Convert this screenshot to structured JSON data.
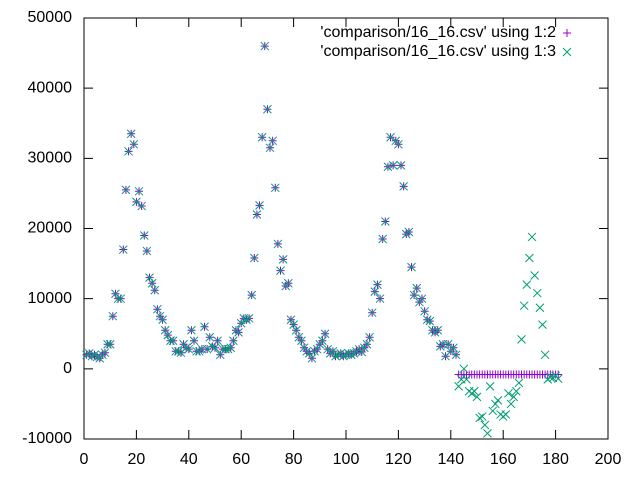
{
  "chart_data": {
    "type": "scatter",
    "x": [
      1,
      2,
      3,
      4,
      5,
      6,
      7,
      8,
      9,
      10,
      11,
      12,
      13,
      14,
      15,
      16,
      17,
      18,
      19,
      20,
      21,
      22,
      23,
      24,
      25,
      26,
      27,
      28,
      29,
      30,
      31,
      32,
      33,
      34,
      35,
      36,
      37,
      38,
      39,
      40,
      41,
      42,
      43,
      44,
      45,
      46,
      47,
      48,
      49,
      50,
      51,
      52,
      53,
      54,
      55,
      56,
      57,
      58,
      59,
      60,
      61,
      62,
      63,
      64,
      65,
      66,
      67,
      68,
      69,
      70,
      71,
      72,
      73,
      74,
      75,
      76,
      77,
      78,
      79,
      80,
      81,
      82,
      83,
      84,
      85,
      86,
      87,
      88,
      89,
      90,
      91,
      92,
      93,
      94,
      95,
      96,
      97,
      98,
      99,
      100,
      101,
      102,
      103,
      104,
      105,
      106,
      107,
      108,
      109,
      110,
      111,
      112,
      113,
      114,
      115,
      116,
      117,
      118,
      119,
      120,
      121,
      122,
      123,
      124,
      125,
      126,
      127,
      128,
      129,
      130,
      131,
      132,
      133,
      134,
      135,
      136,
      137,
      138,
      139,
      140,
      141,
      142,
      143,
      144,
      145,
      146,
      147,
      148,
      149,
      150,
      151,
      152,
      153,
      154,
      155,
      156,
      157,
      158,
      159,
      160,
      161,
      162,
      163,
      164,
      165,
      166,
      167,
      168,
      169,
      170,
      171,
      172,
      173,
      174,
      175,
      176,
      177,
      178,
      179,
      180,
      181
    ],
    "series": [
      {
        "name": "'comparison/16_16.csv' using 1:2",
        "color": "#9400d3",
        "marker": "plus",
        "values": [
          2000,
          2200,
          1800,
          2000,
          1700,
          1500,
          2000,
          2300,
          3500,
          3500,
          7500,
          10700,
          10000,
          10000,
          17000,
          25500,
          31000,
          33500,
          32000,
          23800,
          25300,
          23200,
          19000,
          16800,
          13000,
          12200,
          11200,
          8500,
          7500,
          7000,
          5500,
          4800,
          4000,
          4000,
          2500,
          2500,
          2300,
          3500,
          3000,
          2800,
          5500,
          4000,
          2500,
          2500,
          2800,
          6000,
          2800,
          4500,
          3200,
          3000,
          4000,
          2000,
          2800,
          2800,
          2800,
          3000,
          4000,
          5500,
          5200,
          6500,
          7200,
          7000,
          7200,
          10500,
          15800,
          22000,
          23300,
          33000,
          46000,
          37000,
          31500,
          32500,
          25800,
          17800,
          14000,
          15600,
          11800,
          12200,
          7000,
          6300,
          5500,
          4500,
          4000,
          3000,
          2500,
          2200,
          1500,
          2500,
          2800,
          3500,
          4000,
          5000,
          2800,
          2200,
          2500,
          1800,
          2000,
          2200,
          1800,
          2000,
          2200,
          2000,
          2200,
          2500,
          2800,
          2400,
          3000,
          3500,
          4500,
          8000,
          11000,
          12000,
          10000,
          18500,
          21000,
          28800,
          33000,
          29000,
          32500,
          32000,
          29000,
          26000,
          19200,
          19500,
          14500,
          10500,
          11500,
          9500,
          10000,
          8200,
          7000,
          6800,
          5500,
          5200,
          5500,
          3200,
          3500,
          1800,
          3500,
          2500,
          3000,
          2000,
          -800,
          -800,
          -800,
          -800,
          -800,
          -800,
          -800,
          -800,
          -800,
          -800,
          -800,
          -800,
          -800,
          -800,
          -800,
          -800,
          -800,
          -800,
          -800,
          -800,
          -800,
          -800,
          -800,
          -800,
          -800,
          -800,
          -800,
          -800,
          -800,
          -800,
          -800,
          -800,
          -800,
          -800,
          -800,
          -800,
          -800,
          -800,
          -800
        ]
      },
      {
        "name": "'comparison/16_16.csv' using 1:3",
        "color": "#009e73",
        "marker": "cross",
        "values": [
          2000,
          2200,
          1800,
          2000,
          1700,
          1500,
          2000,
          2300,
          3500,
          3500,
          7500,
          10700,
          10000,
          10000,
          17000,
          25500,
          31000,
          33500,
          32000,
          23800,
          25300,
          23200,
          19000,
          16800,
          13000,
          12200,
          11200,
          8500,
          7500,
          7000,
          5500,
          4800,
          4000,
          4000,
          2500,
          2500,
          2300,
          3500,
          3000,
          2800,
          5500,
          4000,
          2500,
          2500,
          2800,
          6000,
          2800,
          4500,
          3200,
          3000,
          4000,
          2000,
          2800,
          2800,
          2800,
          3000,
          4000,
          5500,
          5200,
          6500,
          7200,
          7000,
          7200,
          10500,
          15800,
          22000,
          23300,
          33000,
          46000,
          37000,
          31500,
          32500,
          25800,
          17800,
          14000,
          15600,
          11800,
          12200,
          7000,
          6300,
          5500,
          4500,
          4000,
          3000,
          2500,
          2200,
          1500,
          2500,
          2800,
          3500,
          4000,
          5000,
          2800,
          2200,
          2500,
          1800,
          2000,
          2200,
          1800,
          2000,
          2200,
          2000,
          2200,
          2500,
          2800,
          2400,
          3000,
          3500,
          4500,
          8000,
          11000,
          12000,
          10000,
          18500,
          21000,
          28800,
          33000,
          29000,
          32500,
          32000,
          29000,
          26000,
          19200,
          19500,
          14500,
          10500,
          11500,
          9500,
          10000,
          8200,
          7000,
          6800,
          5500,
          5200,
          5500,
          3200,
          3500,
          1800,
          3500,
          2500,
          3000,
          2000,
          -2500,
          -1500,
          0,
          -1500,
          -3200,
          -3500,
          -3200,
          -4000,
          -7000,
          -6800,
          -8000,
          -9200,
          -2500,
          -6000,
          -5000,
          -4500,
          -6500,
          -6800,
          -6500,
          -3500,
          -5000,
          -4000,
          -3200,
          -2000,
          4200,
          9000,
          12000,
          15800,
          18800,
          13300,
          10800,
          8700,
          6300,
          2000,
          -1500,
          -1200,
          -1300,
          -1000,
          -1400
        ]
      }
    ],
    "xlim": [
      0,
      200
    ],
    "xticks": [
      0,
      20,
      40,
      60,
      80,
      100,
      120,
      140,
      160,
      180,
      200
    ],
    "ylim": [
      -10000,
      50000
    ],
    "yticks": [
      -10000,
      0,
      10000,
      20000,
      30000,
      40000,
      50000
    ],
    "legend": "top-right"
  }
}
